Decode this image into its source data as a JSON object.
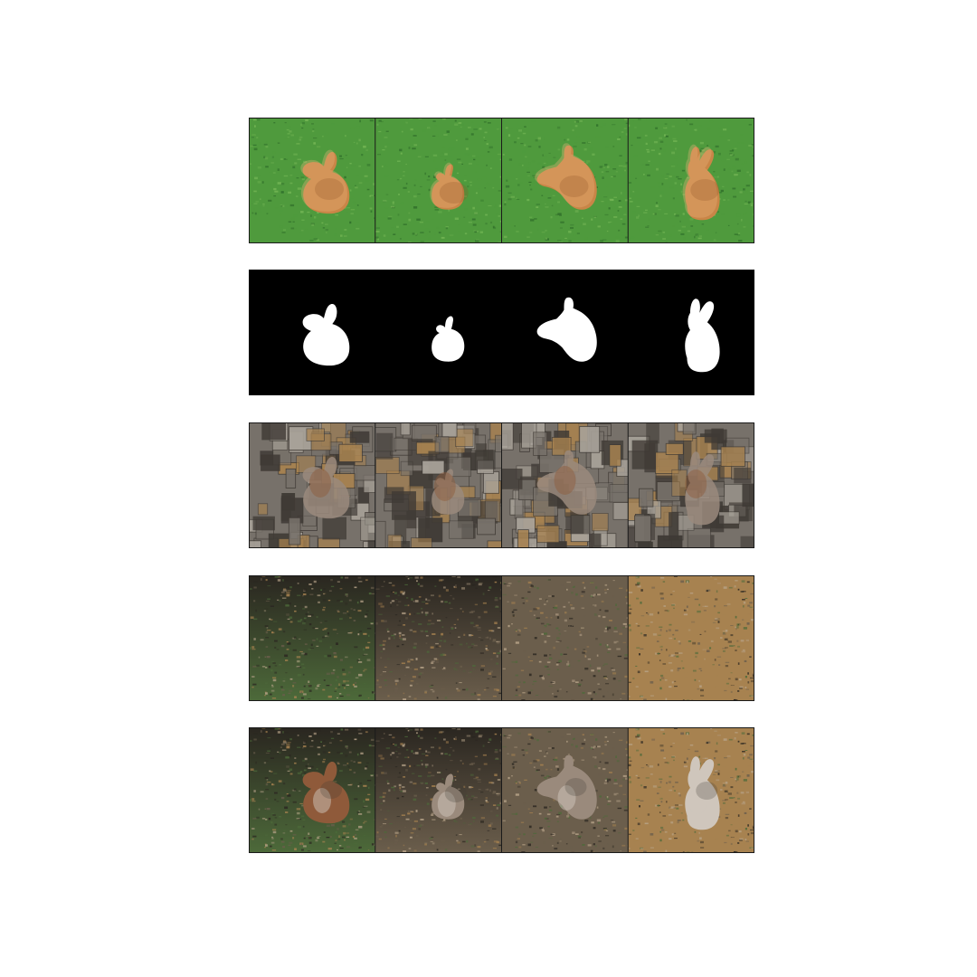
{
  "figure": {
    "row_order": [
      "composite",
      "mask",
      "texture",
      "background",
      "result"
    ],
    "columns": 4,
    "palette": {
      "grass": "#4f9a3d",
      "grass_dark": "#2f6e2a",
      "grass_light": "#74b655",
      "rabbit": "#c98547",
      "rabbit_dark": "#8a5228",
      "rabbit_light": "#e8b47c",
      "mask_bg": "#000000",
      "mask_fg": "#ffffff",
      "stone_light": "#a9a39a",
      "stone_mid": "#77716a",
      "stone_dark": "#3f3a35",
      "wallaby": "#9a8a7c",
      "wallaby_warm": "#8f5a3a",
      "wallaby_light": "#cfc6bc",
      "soil_dark": "#2a2620",
      "soil_mid": "#6b5e4c",
      "soil_light": "#b9a58a",
      "soil_warm": "#a78250",
      "foliage": "#4d6a3a",
      "border": "#1a1a1a"
    }
  }
}
